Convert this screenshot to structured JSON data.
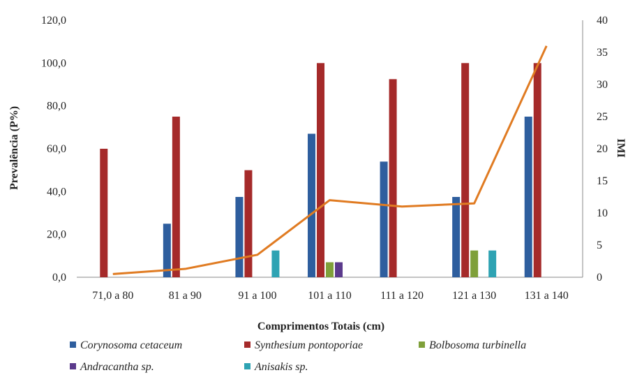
{
  "chart_data": {
    "type": "bar",
    "title": "",
    "xlabel": "Comprimentos Totais (cm)",
    "ylabel": "Prevalência (P%)",
    "y2label": "IMI",
    "categories": [
      "71,0 a 80",
      "81 a 90",
      "91 a 100",
      "101 a 110",
      "111 a 120",
      "121 a 130",
      "131 a 140"
    ],
    "ylim": [
      0,
      120
    ],
    "yticks": [
      "0,0",
      "20,0",
      "40,0",
      "60,0",
      "80,0",
      "100,0",
      "120,0"
    ],
    "y2lim": [
      0,
      40
    ],
    "y2ticks": [
      "0",
      "5",
      "10",
      "15",
      "20",
      "25",
      "30",
      "35",
      "40"
    ],
    "grid": false,
    "legend_position": "bottom",
    "series": [
      {
        "name": "Corynosoma cetaceum",
        "color": "#2E5E9E",
        "values": [
          0,
          25,
          37.5,
          67,
          54,
          37.5,
          75
        ]
      },
      {
        "name": "Synthesium pontoporiae",
        "color": "#A52A2A",
        "values": [
          60,
          75,
          50,
          100,
          92.5,
          100,
          100
        ]
      },
      {
        "name": "Bolbosoma turbinella",
        "color": "#7FA03A",
        "values": [
          0,
          0,
          0,
          7,
          0,
          12.5,
          0
        ]
      },
      {
        "name": "Andracantha sp.",
        "color": "#5B3A8C",
        "values": [
          0,
          0,
          0,
          7,
          0,
          0,
          0
        ]
      },
      {
        "name": "Anisakis sp.",
        "color": "#2EA3B3",
        "values": [
          0,
          0,
          12.5,
          0,
          0,
          12.5,
          0
        ]
      }
    ],
    "line_series": {
      "name": "IMI",
      "color": "#E07B22",
      "axis": "right",
      "values": [
        0.5,
        1.3,
        3.5,
        12,
        11,
        11.5,
        36
      ]
    }
  }
}
